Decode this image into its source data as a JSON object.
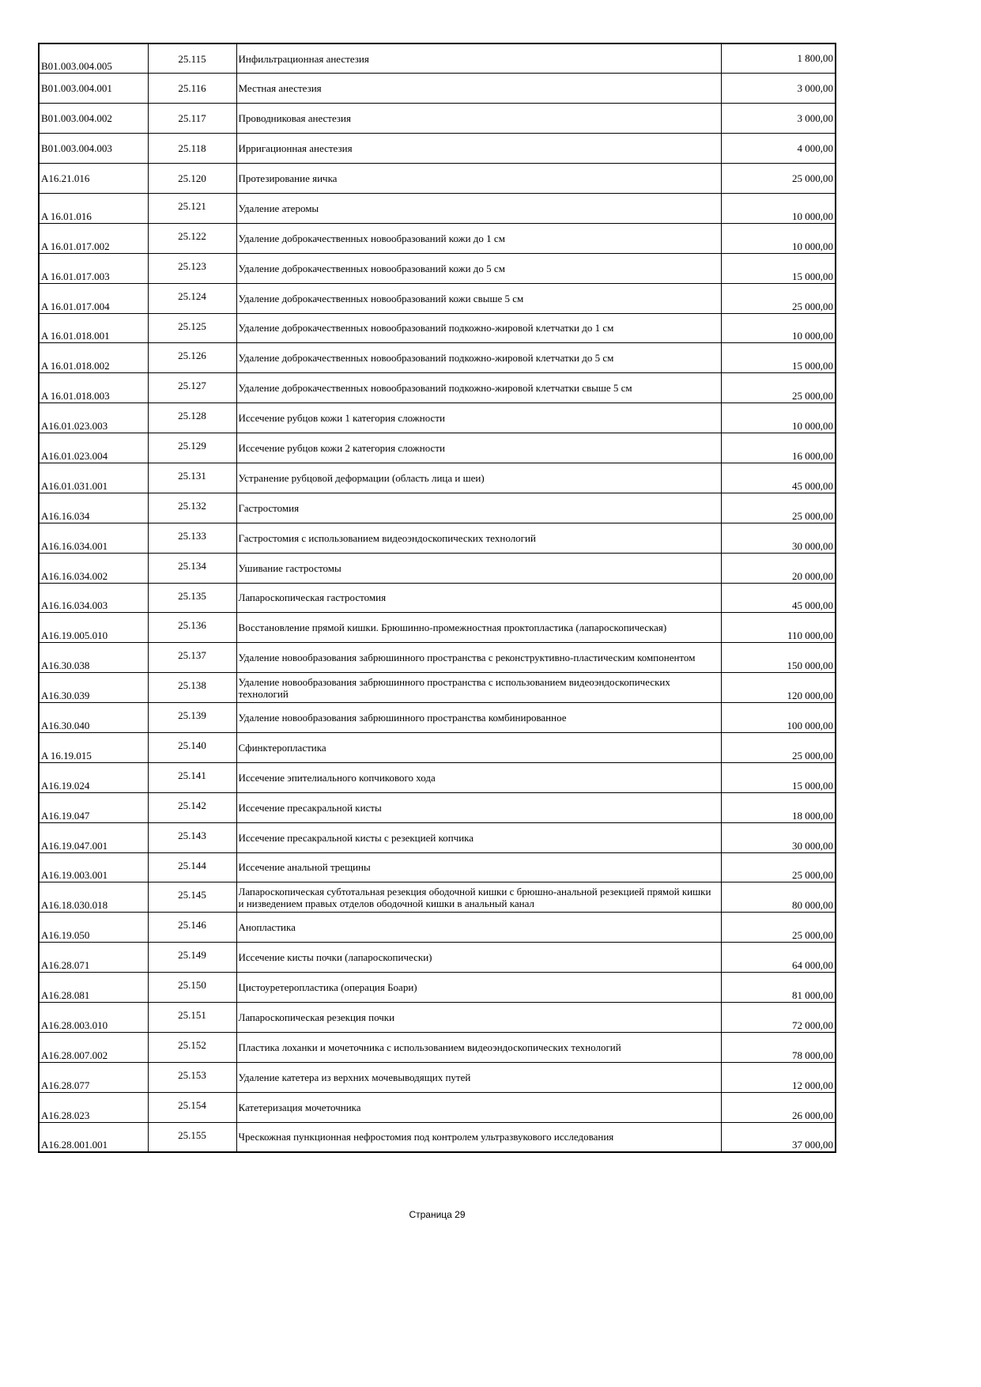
{
  "rows": [
    {
      "code": "B01.003.004.005",
      "num": "25.115",
      "desc": "Инфильтрационная анестезия",
      "price": "1 800,00"
    },
    {
      "code": "B01.003.004.001",
      "num": "25.116",
      "desc": "Местная анестезия",
      "price": "3 000,00"
    },
    {
      "code": "B01.003.004.002",
      "num": "25.117",
      "desc": "Проводниковая анестезия",
      "price": "3 000,00"
    },
    {
      "code": "B01.003.004.003",
      "num": "25.118",
      "desc": "Ирригационная анестезия",
      "price": "4 000,00"
    },
    {
      "code": "A16.21.016",
      "num": "25.120",
      "desc": "Протезирование яичка",
      "price": "25 000,00"
    },
    {
      "code": "A 16.01.016",
      "num": "25.121",
      "desc": "Удаление атеромы",
      "price": "10 000,00"
    },
    {
      "code": "A 16.01.017.002",
      "num": "25.122",
      "desc": "Удаление доброкачественных новообразований кожи до 1 см",
      "price": "10 000,00"
    },
    {
      "code": "A 16.01.017.003",
      "num": "25.123",
      "desc": "Удаление доброкачественных новообразований кожи до 5 см",
      "price": "15 000,00"
    },
    {
      "code": "A 16.01.017.004",
      "num": "25.124",
      "desc": "Удаление доброкачественных новообразований кожи свыше 5 см",
      "price": "25 000,00"
    },
    {
      "code": "A 16.01.018.001",
      "num": "25.125",
      "desc": "Удаление доброкачественных новообразований подкожно-жировой клетчатки до 1 см",
      "price": "10 000,00"
    },
    {
      "code": "A 16.01.018.002",
      "num": "25.126",
      "desc": "Удаление доброкачественных новообразований подкожно-жировой клетчатки до 5 см",
      "price": "15 000,00"
    },
    {
      "code": "A 16.01.018.003",
      "num": "25.127",
      "desc": "Удаление доброкачественных новообразований подкожно-жировой клетчатки свыше 5 см",
      "price": "25 000,00"
    },
    {
      "code": "A16.01.023.003",
      "num": "25.128",
      "desc": "Иссечение рубцов кожи 1 категория сложности",
      "price": "10 000,00"
    },
    {
      "code": "A16.01.023.004",
      "num": "25.129",
      "desc": "Иссечение рубцов кожи 2 категория сложности",
      "price": "16 000,00"
    },
    {
      "code": "A16.01.031.001",
      "num": "25.131",
      "desc": "Устранение рубцовой деформации (область лица и шеи)",
      "price": "45 000,00"
    },
    {
      "code": "A16.16.034",
      "num": "25.132",
      "desc": "Гастростомия",
      "price": "25 000,00"
    },
    {
      "code": "A16.16.034.001",
      "num": "25.133",
      "desc": "Гастростомия с использованием видеоэндоскопических технологий",
      "price": "30 000,00"
    },
    {
      "code": "A16.16.034.002",
      "num": "25.134",
      "desc": "Ушивание гастростомы",
      "price": "20 000,00"
    },
    {
      "code": "A16.16.034.003",
      "num": "25.135",
      "desc": "Лапароскопическая гастростомия",
      "price": "45 000,00"
    },
    {
      "code": "A16.19.005.010",
      "num": "25.136",
      "desc": "Восстановление прямой кишки. Брюшинно-промежностная проктопластика (лапароскопическая)",
      "price": "110 000,00"
    },
    {
      "code": "A16.30.038",
      "num": "25.137",
      "desc": "Удаление новообразования забрюшинного пространства с реконструктивно-пластическим компонентом",
      "price": "150 000,00"
    },
    {
      "code": "A16.30.039",
      "num": "25.138",
      "desc": "Удаление новообразования забрюшинного пространства с использованием видеоэндоскопических технологий",
      "price": "120 000,00"
    },
    {
      "code": "A16.30.040",
      "num": "25.139",
      "desc": "Удаление новообразования забрюшинного пространства комбинированное",
      "price": "100 000,00"
    },
    {
      "code": "A 16.19.015",
      "num": "25.140",
      "desc": "Сфинктеропластика",
      "price": "25 000,00"
    },
    {
      "code": "A16.19.024",
      "num": "25.141",
      "desc": "Иссечение эпителиального копчикового хода",
      "price": "15 000,00"
    },
    {
      "code": "A16.19.047",
      "num": "25.142",
      "desc": "Иссечение пресакральной кисты",
      "price": "18 000,00"
    },
    {
      "code": "A16.19.047.001",
      "num": "25.143",
      "desc": "Иссечение пресакральной кисты с резекцией копчика",
      "price": "30 000,00"
    },
    {
      "code": "A16.19.003.001",
      "num": "25.144",
      "desc": "Иссечение анальной трещины",
      "price": "25 000,00"
    },
    {
      "code": " A16.18.030.018",
      "num": "25.145",
      "desc": "Лапароскопическая субтотальная резекция ободочной кишки с брюшно-анальной резекцией прямой кишки и низведением правых отделов ободочной кишки в анальный канал",
      "price": "80 000,00"
    },
    {
      "code": "A16.19.050",
      "num": "25.146",
      "desc": "Анопластика",
      "price": "25 000,00"
    },
    {
      "code": "A16.28.071",
      "num": "25.149",
      "desc": "Иссечение кисты почки (лапароскопически)",
      "price": "64 000,00"
    },
    {
      "code": "A16.28.081",
      "num": "25.150",
      "desc": " Цистоуретеропластика (операция Боари)",
      "price": "81 000,00"
    },
    {
      "code": "A16.28.003.010",
      "num": "25.151",
      "desc": "Лапароскопическая резекция почки",
      "price": "72 000,00"
    },
    {
      "code": "A16.28.007.002",
      "num": "25.152",
      "desc": "Пластика лоханки и мочеточника с использованием видеоэндоскопических технологий",
      "price": "78 000,00"
    },
    {
      "code": "A16.28.077",
      "num": "25.153",
      "desc": "Удаление катетера из верхних мочевыводящих путей",
      "price": "12 000,00"
    },
    {
      "code": "A16.28.023",
      "num": "25.154",
      "desc": "Катетеризация мочеточника",
      "price": "26 000,00"
    },
    {
      "code": "A16.28.001.001",
      "num": "25.155",
      "desc": "Чрескожная пункционная нефростомия под контролем ультразвукового исследования",
      "price": "37 000,00"
    }
  ],
  "footer": {
    "page_label": "Страница 29"
  }
}
